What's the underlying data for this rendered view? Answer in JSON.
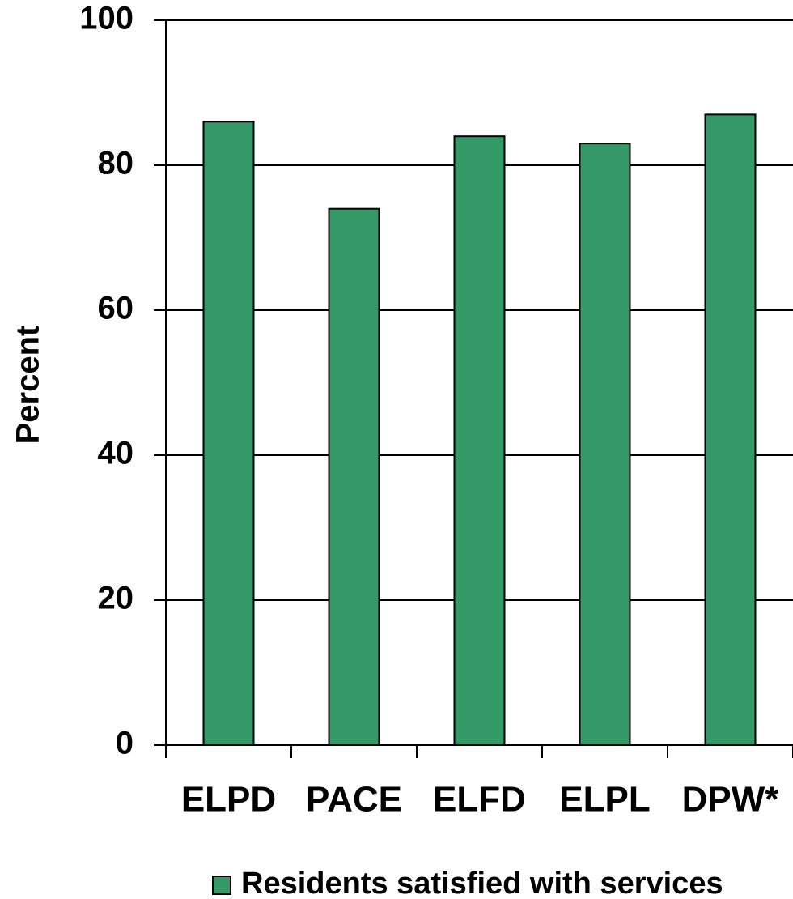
{
  "chart_data": {
    "type": "bar",
    "ylabel": "Percent",
    "categories": [
      "ELPD",
      "PACE",
      "ELFD",
      "ELPL",
      "DPW*"
    ],
    "series": [
      {
        "name": "Residents satisfied with services",
        "color": "#339966",
        "values": [
          86,
          74,
          84,
          83,
          87
        ]
      }
    ],
    "ylim": [
      0,
      100
    ],
    "yticks": [
      0,
      20,
      40,
      60,
      80,
      100
    ],
    "grid": true,
    "legend": "bottom"
  }
}
